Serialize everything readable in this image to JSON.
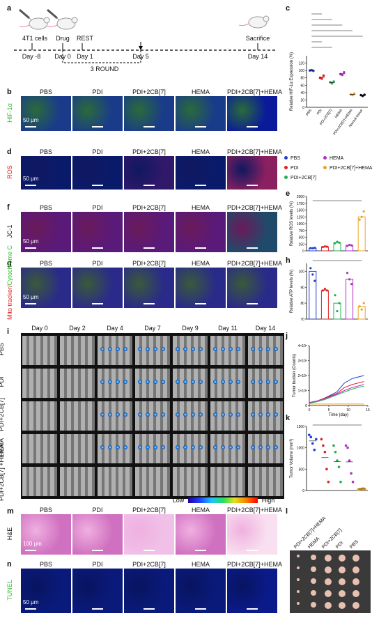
{
  "panels": {
    "a": "a",
    "b": "b",
    "c": "c",
    "d": "d",
    "e": "e",
    "f": "f",
    "g": "g",
    "h": "h",
    "i": "i",
    "j": "j",
    "k": "k",
    "l": "l",
    "m": "m",
    "n": "n"
  },
  "groups": [
    "PBS",
    "PDI",
    "PDI+2CB[7]",
    "HEMA",
    "PDI+2CB[7]+HEMA"
  ],
  "timeline": {
    "cells": "4T1 cells",
    "drug": "Drug",
    "rest": "REST",
    "sacrifice": "Sacrifice",
    "days": [
      "Day  -8",
      "Day 0",
      "Day 1",
      "Day 5",
      "Day 14"
    ],
    "round": "3 ROUND"
  },
  "row_labels": {
    "b": "HIF-1α",
    "d": "ROS",
    "f": "JC-1",
    "g1": "Mito tracker/",
    "g2": "Cytochrome C",
    "m": "H&E",
    "n": "TUNEL",
    "i_groups": [
      "PBS",
      "PDI",
      "PDI+2CB[7]",
      "HEMA",
      "PDI+2CB[7] +HEMA"
    ]
  },
  "scale_labels": {
    "b": "50 μm",
    "d": "50 μm",
    "f": "50 μm",
    "g": "50 μm",
    "m": "100 μm",
    "n": "50 μm"
  },
  "ivis": {
    "days": [
      "Day 0",
      "Day 2",
      "Day 4",
      "Day 7",
      "Day 9",
      "Day 11",
      "Day 14"
    ],
    "low": "Low",
    "high": "High"
  },
  "legend_d": {
    "items": [
      {
        "name": "PBS",
        "color": "#1f3fd6"
      },
      {
        "name": "HEMA",
        "color": "#b030c8"
      },
      {
        "name": "PDI",
        "color": "#e02020"
      },
      {
        "name": "PDI+2CB[7]+HEMA",
        "color": "#f0a020"
      },
      {
        "name": "PDI+2CB[7]",
        "color": "#20b050"
      }
    ]
  },
  "photo_l": {
    "labels": [
      "PDI+2CB[7]+HEMA",
      "HEMA",
      "PDI+2CB[7]",
      "PDI",
      "PBS"
    ]
  },
  "colors": {
    "PBS": "#1f3fd6",
    "PDI": "#e02020",
    "PDI+2CB[7]": "#20b050",
    "HEMA": "#b030c8",
    "PDI+2CB[7]+HEMA": "#f0a020"
  },
  "chart_data": [
    {
      "id": "c",
      "type": "scatter",
      "ylabel": "Relative HIF-1α Expression (%)",
      "ylim": [
        0,
        140
      ],
      "yticks": [
        0,
        20,
        40,
        60,
        80,
        100,
        120
      ],
      "categories": [
        "PBS",
        "PDI",
        "PDI+2CB[7]",
        "HEMA",
        "PDI+2CB[7]+HEMA",
        "Normal tissue"
      ],
      "series_colors": [
        "#1f3fd6",
        "#e02020",
        "#20b050",
        "#b030c8",
        "#f0a020",
        "#111111"
      ],
      "points": [
        [
          100,
          101,
          99
        ],
        [
          80,
          78,
          86
        ],
        [
          68,
          65,
          70
        ],
        [
          90,
          88,
          95
        ],
        [
          35,
          33,
          37
        ],
        [
          33,
          31,
          34
        ]
      ]
    },
    {
      "id": "e",
      "type": "bar",
      "ylabel": "Relative ROS levels (%)",
      "ylim": [
        0,
        2000
      ],
      "yticks": [
        0,
        250,
        500,
        750,
        1000,
        1250,
        1500,
        1750,
        2000
      ],
      "categories": [
        "PBS",
        "PDI",
        "PDI+2CB[7]",
        "HEMA",
        "PDI+2CB[7]+HEMA"
      ],
      "values": [
        100,
        150,
        300,
        200,
        1250
      ],
      "points": [
        [
          100,
          95,
          110
        ],
        [
          140,
          160,
          150
        ],
        [
          280,
          330,
          300
        ],
        [
          180,
          220,
          200
        ],
        [
          1150,
          1250,
          1450
        ]
      ]
    },
    {
      "id": "h",
      "type": "bar",
      "ylabel": "Relative ATP levels (%)",
      "ylim": [
        70,
        105
      ],
      "yticks": [
        70,
        80,
        90,
        100
      ],
      "categories": [
        "PBS",
        "PDI",
        "PDI+2CB[7]",
        "HEMA",
        "PDI+2CB[7]+HEMA"
      ],
      "values": [
        100,
        88,
        80,
        95,
        78
      ],
      "points": [
        [
          102,
          98,
          94
        ],
        [
          88,
          89,
          88
        ],
        [
          85,
          75,
          80
        ],
        [
          99,
          95,
          92
        ],
        [
          78,
          76,
          80
        ]
      ]
    },
    {
      "id": "j",
      "type": "line",
      "ylabel": "Tumor burden (Counts)",
      "xlabel": "Time (day)",
      "xlim": [
        0,
        15
      ],
      "xticks": [
        0,
        5,
        10,
        15
      ],
      "ylim": [
        0,
        4
      ],
      "yticks": [
        0,
        1,
        2,
        3,
        4
      ],
      "ytick_labels": [
        "0",
        "1×10⁸",
        "2×10⁸",
        "3×10⁸",
        "4×10⁸"
      ],
      "x": [
        0,
        2,
        4,
        7,
        9,
        11,
        14
      ],
      "series": [
        {
          "values": [
            0.2,
            0.3,
            0.5,
            0.9,
            1.5,
            1.8,
            2.0
          ]
        },
        {
          "values": [
            0.2,
            0.3,
            0.5,
            0.8,
            1.2,
            1.4,
            1.6
          ]
        },
        {
          "values": [
            0.15,
            0.25,
            0.4,
            0.7,
            0.9,
            1.1,
            1.3
          ]
        },
        {
          "values": [
            0.2,
            0.3,
            0.45,
            0.75,
            1.0,
            1.2,
            1.4
          ]
        },
        {
          "values": [
            0.1,
            0.1,
            0.1,
            0.1,
            0.1,
            0.1,
            0.1
          ]
        }
      ]
    },
    {
      "id": "k",
      "type": "scatter",
      "ylabel": "Tumor Volume (mm³)",
      "ylim": [
        0,
        1500
      ],
      "yticks": [
        0,
        500,
        1000,
        1500
      ],
      "categories": [
        "PBS",
        "PDI",
        "PDI+2CB[7]",
        "HEMA",
        "PDI+2CB[7]+HEMA"
      ],
      "points": [
        [
          1300,
          1250,
          1100,
          950,
          1200
        ],
        [
          1200,
          1050,
          900,
          500,
          200
        ],
        [
          1050,
          900,
          700,
          550,
          200
        ],
        [
          1050,
          1000,
          700,
          400,
          200
        ],
        [
          20,
          30,
          40,
          50,
          30
        ]
      ]
    }
  ]
}
